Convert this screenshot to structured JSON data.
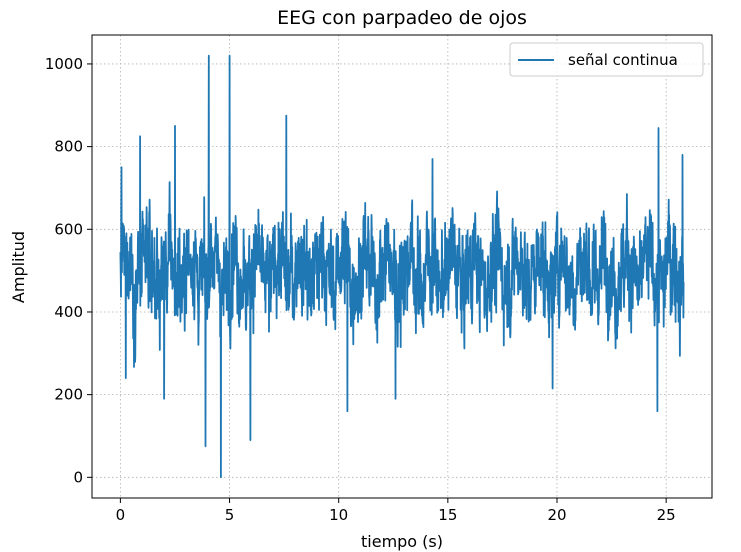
{
  "chart_data": {
    "type": "line",
    "title": "EEG con parpadeo de ojos",
    "xlabel": "tiempo (s)",
    "ylabel": "Amplitud",
    "xlim": [
      -1.3,
      27.1
    ],
    "ylim": [
      -50,
      1070
    ],
    "xticks": [
      0,
      5,
      10,
      15,
      20,
      25
    ],
    "yticks": [
      0,
      200,
      400,
      600,
      800,
      1000
    ],
    "grid": true,
    "legend_position": "top-right",
    "series": [
      {
        "name": "señal continua",
        "color": "#1f77b4",
        "x_start": 0,
        "x_end": 25.8,
        "baseline": 500,
        "anchor_points": [
          {
            "x": 0.05,
            "y": 750
          },
          {
            "x": 0.25,
            "y": 240
          },
          {
            "x": 0.9,
            "y": 825
          },
          {
            "x": 2.0,
            "y": 190
          },
          {
            "x": 2.5,
            "y": 850
          },
          {
            "x": 3.9,
            "y": 75
          },
          {
            "x": 4.05,
            "y": 1020
          },
          {
            "x": 4.6,
            "y": 0
          },
          {
            "x": 5.0,
            "y": 1020
          },
          {
            "x": 5.95,
            "y": 90
          },
          {
            "x": 7.6,
            "y": 875
          },
          {
            "x": 10.4,
            "y": 160
          },
          {
            "x": 12.6,
            "y": 190
          },
          {
            "x": 14.3,
            "y": 770
          },
          {
            "x": 19.8,
            "y": 215
          },
          {
            "x": 24.6,
            "y": 160
          },
          {
            "x": 24.65,
            "y": 845
          },
          {
            "x": 25.75,
            "y": 780
          }
        ]
      }
    ]
  }
}
